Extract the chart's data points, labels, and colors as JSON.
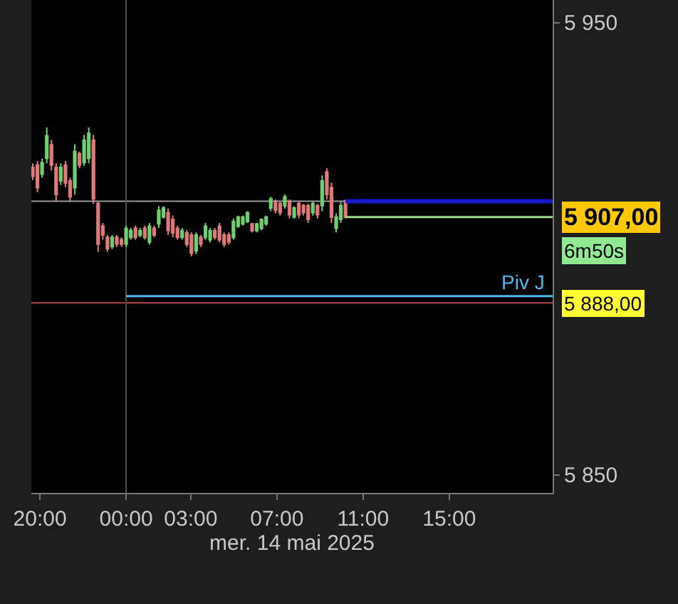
{
  "chart_data": {
    "type": "candlestick",
    "xlabel": "mer. 14 mai 2025",
    "x": [
      "2025-05-13T19:40",
      "2025-05-13T19:53",
      "2025-05-13T20:06",
      "2025-05-13T20:19",
      "2025-05-13T20:32",
      "2025-05-13T20:45",
      "2025-05-13T20:58",
      "2025-05-13T21:11",
      "2025-05-13T21:24",
      "2025-05-13T21:37",
      "2025-05-13T21:50",
      "2025-05-13T22:03",
      "2025-05-13T22:16",
      "2025-05-13T22:29",
      "2025-05-13T22:42",
      "2025-05-13T22:55",
      "2025-05-13T23:08",
      "2025-05-13T23:21",
      "2025-05-13T23:34",
      "2025-05-13T23:47",
      "2025-05-14T00:00",
      "2025-05-14T00:13",
      "2025-05-14T00:26",
      "2025-05-14T00:39",
      "2025-05-14T00:52",
      "2025-05-14T01:05",
      "2025-05-14T01:18",
      "2025-05-14T01:31",
      "2025-05-14T01:44",
      "2025-05-14T01:57",
      "2025-05-14T02:10",
      "2025-05-14T02:23",
      "2025-05-14T02:36",
      "2025-05-14T02:49",
      "2025-05-14T03:02",
      "2025-05-14T03:15",
      "2025-05-14T03:28",
      "2025-05-14T03:41",
      "2025-05-14T03:54",
      "2025-05-14T04:07",
      "2025-05-14T04:20",
      "2025-05-14T04:33",
      "2025-05-14T04:46",
      "2025-05-14T04:59",
      "2025-05-14T05:12",
      "2025-05-14T05:25",
      "2025-05-14T05:38",
      "2025-05-14T05:51",
      "2025-05-14T06:04",
      "2025-05-14T06:17",
      "2025-05-14T06:30",
      "2025-05-14T06:43",
      "2025-05-14T06:56",
      "2025-05-14T07:09",
      "2025-05-14T07:22",
      "2025-05-14T07:35",
      "2025-05-14T07:48",
      "2025-05-14T08:01",
      "2025-05-14T08:14",
      "2025-05-14T08:27",
      "2025-05-14T08:40",
      "2025-05-14T08:53",
      "2025-05-14T09:06",
      "2025-05-14T09:19",
      "2025-05-14T09:32",
      "2025-05-14T09:45",
      "2025-05-14T09:58",
      "2025-05-14T10:11"
    ],
    "ohlc": [
      [
        5918.0,
        5918.9,
        5915.2,
        5916.0
      ],
      [
        5918.5,
        5919.4,
        5912.5,
        5913.5
      ],
      [
        5916.5,
        5919.9,
        5915.7,
        5919.0
      ],
      [
        5920.0,
        5926.8,
        5918.9,
        5925.0
      ],
      [
        5923.0,
        5924.1,
        5917.3,
        5918.5
      ],
      [
        5918.0,
        5918.9,
        5910.4,
        5912.0
      ],
      [
        5915.0,
        5918.9,
        5914.1,
        5918.0
      ],
      [
        5918.5,
        5919.4,
        5913.6,
        5914.5
      ],
      [
        5915.0,
        5915.7,
        5910.4,
        5911.5
      ],
      [
        5913.5,
        5923.1,
        5912.0,
        5921.5
      ],
      [
        5921.0,
        5921.5,
        5917.8,
        5918.5
      ],
      [
        5919.0,
        5925.2,
        5918.3,
        5924.0
      ],
      [
        5920.0,
        5926.8,
        5918.9,
        5925.5
      ],
      [
        5924.0,
        5925.2,
        5909.9,
        5911.0
      ],
      [
        5910.0,
        5910.4,
        5899.3,
        5901.0
      ],
      [
        5905.0,
        5905.7,
        5902.0,
        5903.0
      ],
      [
        5902.5,
        5903.0,
        5899.3,
        5900.0
      ],
      [
        5900.5,
        5903.0,
        5899.9,
        5902.5
      ],
      [
        5902.5,
        5903.0,
        5900.4,
        5901.0
      ],
      [
        5902.0,
        5902.5,
        5900.4,
        5901.0
      ],
      [
        5901.0,
        5905.1,
        5900.4,
        5904.5
      ],
      [
        5902.5,
        5904.6,
        5902.0,
        5904.0
      ],
      [
        5904.5,
        5905.1,
        5902.0,
        5902.5
      ],
      [
        5903.0,
        5904.6,
        5902.5,
        5904.0
      ],
      [
        5904.5,
        5905.1,
        5902.0,
        5902.5
      ],
      [
        5901.5,
        5905.7,
        5900.9,
        5905.0
      ],
      [
        5904.5,
        5905.1,
        5902.5,
        5903.0
      ],
      [
        5905.5,
        5909.4,
        5904.6,
        5908.5
      ],
      [
        5907.0,
        5909.4,
        5906.7,
        5909.0
      ],
      [
        5908.0,
        5908.9,
        5903.0,
        5904.0
      ],
      [
        5906.5,
        5907.3,
        5902.5,
        5903.5
      ],
      [
        5904.5,
        5905.1,
        5902.0,
        5902.5
      ],
      [
        5902.5,
        5904.6,
        5902.0,
        5904.0
      ],
      [
        5903.5,
        5904.1,
        5900.4,
        5901.0
      ],
      [
        5903.0,
        5903.6,
        5898.3,
        5899.0
      ],
      [
        5899.5,
        5903.6,
        5898.8,
        5903.0
      ],
      [
        5902.5,
        5903.0,
        5900.4,
        5901.0
      ],
      [
        5902.5,
        5905.7,
        5902.0,
        5905.0
      ],
      [
        5902.0,
        5904.6,
        5901.4,
        5904.0
      ],
      [
        5904.0,
        5904.6,
        5902.0,
        5902.5
      ],
      [
        5905.0,
        5905.7,
        5901.4,
        5902.0
      ],
      [
        5903.0,
        5903.6,
        5900.4,
        5901.0
      ],
      [
        5903.0,
        5903.6,
        5900.9,
        5901.5
      ],
      [
        5902.5,
        5906.7,
        5902.0,
        5906.0
      ],
      [
        5905.0,
        5907.3,
        5904.6,
        5907.0
      ],
      [
        5905.5,
        5907.3,
        5905.1,
        5907.0
      ],
      [
        5906.0,
        5908.3,
        5905.7,
        5908.0
      ],
      [
        5905.5,
        5905.7,
        5903.6,
        5904.0
      ],
      [
        5904.0,
        5905.7,
        5903.6,
        5905.5
      ],
      [
        5904.5,
        5906.7,
        5904.1,
        5906.5
      ],
      [
        5905.5,
        5907.3,
        5905.1,
        5907.0
      ],
      [
        5909.0,
        5911.5,
        5908.3,
        5911.0
      ],
      [
        5910.5,
        5910.9,
        5907.8,
        5908.5
      ],
      [
        5910.0,
        5910.4,
        5907.3,
        5908.0
      ],
      [
        5909.5,
        5912.0,
        5908.9,
        5911.5
      ],
      [
        5910.5,
        5910.9,
        5906.7,
        5907.5
      ],
      [
        5907.0,
        5909.4,
        5906.7,
        5909.0
      ],
      [
        5910.0,
        5910.4,
        5906.7,
        5907.5
      ],
      [
        5909.5,
        5909.9,
        5907.3,
        5908.0
      ],
      [
        5909.5,
        5909.9,
        5905.7,
        5906.5
      ],
      [
        5908.0,
        5910.4,
        5907.3,
        5910.0
      ],
      [
        5909.5,
        5909.9,
        5906.7,
        5907.5
      ],
      [
        5909.5,
        5916.2,
        5908.3,
        5915.0
      ],
      [
        5917.0,
        5917.8,
        5910.9,
        5912.0
      ],
      [
        5913.5,
        5914.6,
        5905.7,
        5907.0
      ],
      [
        5904.5,
        5907.8,
        5903.6,
        5907.0
      ],
      [
        5906.5,
        5910.4,
        5905.7,
        5909.5
      ],
      [
        5910.5,
        5910.9,
        5906.7,
        5907.0
      ]
    ],
    "series": [
      {
        "type": "line",
        "name": "Piv J",
        "color": "#4fb8f0",
        "x": [
          "2025-05-14T00:00",
          "2025-05-14T19:48"
        ],
        "values": [
          5889.5,
          5889.5
        ]
      },
      {
        "type": "line",
        "color": "#1818c8",
        "x": [
          "2025-05-14T10:11",
          "2025-05-14T19:48"
        ],
        "values": [
          5910.5,
          5910.5
        ]
      },
      {
        "type": "line",
        "color": "#9ad88a",
        "x": [
          "2025-05-14T10:11",
          "2025-05-14T19:48"
        ],
        "values": [
          5907,
          5907
        ]
      }
    ],
    "ref_lines": [
      {
        "axis": "y",
        "value": 5910.5,
        "color": "#9a9a9a"
      },
      {
        "axis": "y",
        "value": 5888,
        "label": "5 888,00",
        "color": "#b04848"
      },
      {
        "axis": "x",
        "value": "2025-05-14T00:00",
        "color": "#505050"
      }
    ],
    "annotations": [
      {
        "text": "5 907,00",
        "x": "2025-05-14T19:48",
        "y": 5907
      },
      "6m50s"
    ],
    "xlim": [
      "2025-05-13T19:36",
      "2025-05-14T19:48"
    ],
    "xticks": [
      {
        "value": "2025-05-13T20:00",
        "label": "20:00"
      },
      {
        "value": "2025-05-14T00:00",
        "label": "00:00"
      },
      {
        "value": "2025-05-14T03:00",
        "label": "03:00"
      },
      {
        "value": "2025-05-14T07:00",
        "label": "07:00"
      },
      {
        "value": "2025-05-14T11:00",
        "label": "11:00"
      },
      {
        "value": "2025-05-14T15:00",
        "label": "15:00"
      }
    ],
    "ylim": [
      5846,
      5955
    ],
    "yticks": [
      {
        "value": 5850,
        "label": "5 850"
      },
      {
        "value": 5950,
        "label": "5 950"
      }
    ],
    "legend": false,
    "grid": false
  }
}
